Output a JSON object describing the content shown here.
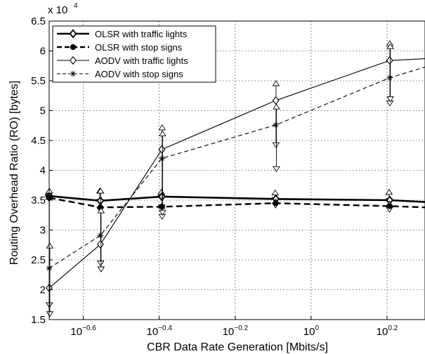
{
  "chart_data": {
    "type": "line",
    "xlabel": "CBR Data Rate Generation [Mbits/s]",
    "ylabel": "Routing Overhead Ratio (RO) [bytes]",
    "y_multiplier_label": "x 10",
    "y_multiplier_exponent": "4",
    "x_scale": "log10",
    "x_log_range": [
      -0.69,
      0.3
    ],
    "ylim": [
      15000,
      65000
    ],
    "grid": true,
    "legend_position": "top-left",
    "x_ticks": [
      {
        "log": -0.6,
        "base": "10",
        "exp": "−0.6"
      },
      {
        "log": -0.4,
        "base": "10",
        "exp": "−0.4"
      },
      {
        "log": -0.2,
        "base": "10",
        "exp": "−0.2"
      },
      {
        "log": 0.0,
        "base": "10",
        "exp": "0"
      },
      {
        "log": 0.2,
        "base": "10",
        "exp": "0.2"
      }
    ],
    "y_ticks": [
      {
        "value": 15000,
        "label": "1.5"
      },
      {
        "value": 20000,
        "label": "2"
      },
      {
        "value": 25000,
        "label": "2.5"
      },
      {
        "value": 30000,
        "label": "3"
      },
      {
        "value": 35000,
        "label": "3.5"
      },
      {
        "value": 40000,
        "label": "4"
      },
      {
        "value": 45000,
        "label": "4.5"
      },
      {
        "value": 50000,
        "label": "5"
      },
      {
        "value": 55000,
        "label": "5.5"
      },
      {
        "value": 60000,
        "label": "6"
      },
      {
        "value": 65000,
        "label": "6.5"
      }
    ],
    "series": [
      {
        "name": "OLSR with traffic lights",
        "line": "solid",
        "width": 2.6,
        "marker": "diamond",
        "x_log": [
          -0.69,
          -0.555,
          -0.393,
          -0.093,
          0.207,
          0.3
        ],
        "y": [
          35700,
          34900,
          35600,
          35200,
          35000,
          34700
        ],
        "marker_x_log": [
          -0.69,
          -0.555,
          -0.393,
          -0.093,
          0.207
        ],
        "err_low": [
          35000,
          34300,
          35000,
          34600,
          34400
        ],
        "err_high": [
          36800,
          37000,
          36800,
          36700,
          36800
        ]
      },
      {
        "name": "OLSR with stop signs",
        "line": "dashed",
        "width": 2.4,
        "marker": "dot",
        "x_log": [
          -0.69,
          -0.555,
          -0.393,
          -0.093,
          0.207,
          0.3
        ],
        "y": [
          35400,
          33800,
          33900,
          34500,
          34000,
          33800
        ],
        "marker_x_log": [
          -0.69,
          -0.555,
          -0.393,
          -0.093,
          0.207
        ],
        "err_low": [
          34800,
          33000,
          33400,
          33700,
          33000
        ],
        "err_high": [
          36000,
          34500,
          34500,
          35200,
          34800
        ]
      },
      {
        "name": "AODV with traffic lights",
        "line": "solid",
        "width": 1.1,
        "marker": "diamond-open",
        "x_log": [
          -0.69,
          -0.555,
          -0.393,
          -0.093,
          0.207,
          0.3
        ],
        "y": [
          20300,
          27600,
          43500,
          51700,
          58400,
          58700
        ],
        "marker_x_log": [
          -0.69,
          -0.555,
          -0.393,
          -0.093,
          0.207
        ],
        "err_low": [
          17000,
          24000,
          31800,
          43800,
          50800
        ],
        "err_high": [
          37000,
          37000,
          47600,
          55000,
          61700
        ]
      },
      {
        "name": "AODV with stop signs",
        "line": "dashed",
        "width": 1.1,
        "marker": "star",
        "x_log": [
          -0.69,
          -0.555,
          -0.393,
          -0.093,
          0.207,
          0.3
        ],
        "y": [
          23600,
          29100,
          42000,
          47600,
          55500,
          57300
        ],
        "marker_x_log": [
          -0.69,
          -0.555,
          -0.393,
          -0.093,
          0.207
        ],
        "err_low": [
          15500,
          23000,
          32500,
          39800,
          51500
        ],
        "err_high": [
          27800,
          33700,
          46600,
          51100,
          61200
        ]
      }
    ]
  }
}
